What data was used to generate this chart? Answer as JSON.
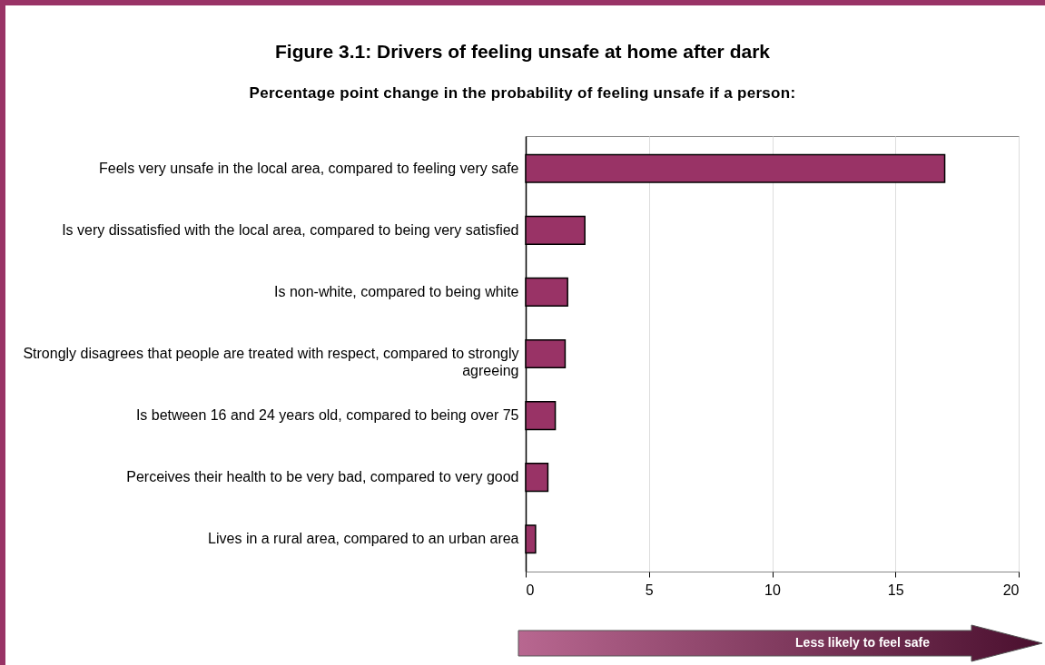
{
  "chart_data": {
    "type": "bar",
    "orientation": "horizontal",
    "title": "Figure 3.1: Drivers of feeling unsafe at home after dark",
    "subtitle": "Percentage point change in the probability of feeling unsafe if a person:",
    "categories": [
      "Feels very unsafe in the local area, compared to feeling very safe",
      "Is very dissatisfied with the local area, compared to being very satisfied",
      "Is non-white, compared to being white",
      "Strongly disagrees that people are treated with respect, compared to strongly agreeing",
      "Is between 16 and 24 years old, compared to being over 75",
      "Perceives their health to be very bad, compared to very good",
      "Lives in a rural area, compared to an urban area"
    ],
    "values": [
      17,
      2.4,
      1.7,
      1.6,
      1.2,
      0.9,
      0.4
    ],
    "color": "#993366",
    "xlim": [
      0,
      20
    ],
    "xticks": [
      0,
      5,
      10,
      15,
      20
    ],
    "grid": "x",
    "annotations": [
      "Less likely to feel safe"
    ]
  }
}
